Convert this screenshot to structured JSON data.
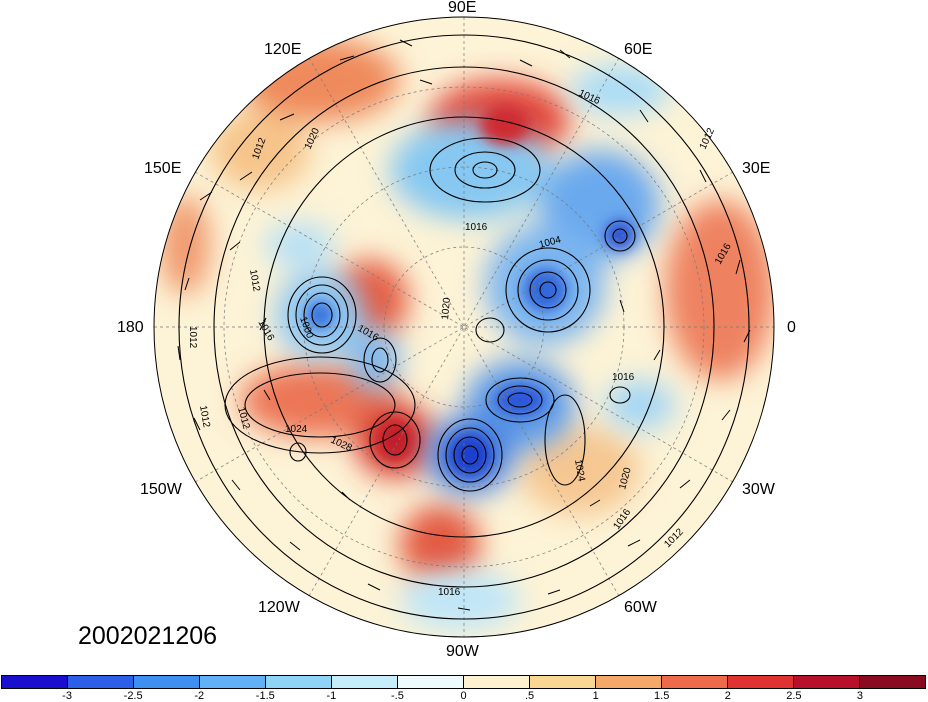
{
  "map": {
    "timestamp": "2002021206",
    "projection": "north-polar-stereographic",
    "longitude_labels": [
      "90E",
      "60E",
      "30E",
      "0",
      "30W",
      "60W",
      "90W",
      "120W",
      "150W",
      "180",
      "150E",
      "120E"
    ],
    "isobar_labels": [
      "1016",
      "1012",
      "1020",
      "1012",
      "1016",
      "1012",
      "1016",
      "1000",
      "1012",
      "1020",
      "1012",
      "1024",
      "1028",
      "1016",
      "1004",
      "1016",
      "1016",
      "1024",
      "1020",
      "1016",
      "1012",
      "1012",
      "1016"
    ],
    "colors": {
      "background": "#ffffff",
      "neutral": "#fdf7e1",
      "positive_strong": "#d73027",
      "negative_strong": "#1f4fd6"
    }
  },
  "colorbar": {
    "ticks": [
      "-3",
      "-2.5",
      "-2",
      "-1.5",
      "-1",
      "-.5",
      "0",
      ".5",
      "1",
      "1.5",
      "2",
      "2.5",
      "3"
    ],
    "colors": [
      "#1a0fcf",
      "#2c5ee8",
      "#3f8ff0",
      "#62b0f5",
      "#8fd3f7",
      "#c6eefa",
      "#eefbfd",
      "#fdf1cf",
      "#f9d694",
      "#f4a869",
      "#ee6a4b",
      "#e13232",
      "#b8102a",
      "#8a0a1f"
    ]
  }
}
